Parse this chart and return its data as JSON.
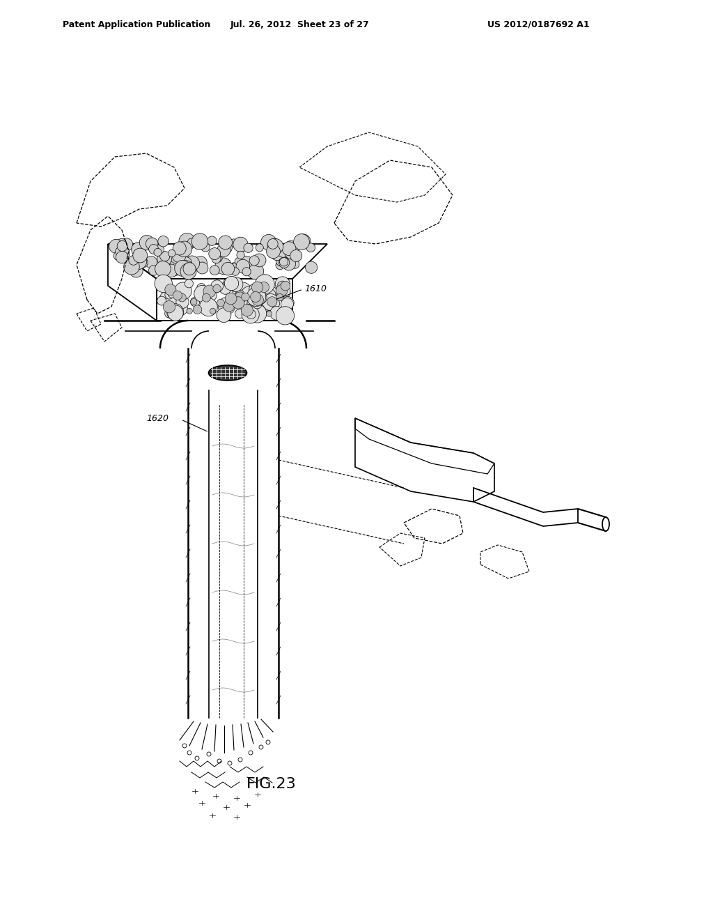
{
  "title_left": "Patent Application Publication",
  "title_mid": "Jul. 26, 2012  Sheet 23 of 27",
  "title_right": "US 2012/0187692 A1",
  "fig_label": "FIG.23",
  "label_1610": "1610",
  "label_1620": "1620",
  "bg_color": "#ffffff",
  "line_color": "#000000",
  "header_fontsize": 9,
  "fig_label_fontsize": 16,
  "annotation_fontsize": 9
}
